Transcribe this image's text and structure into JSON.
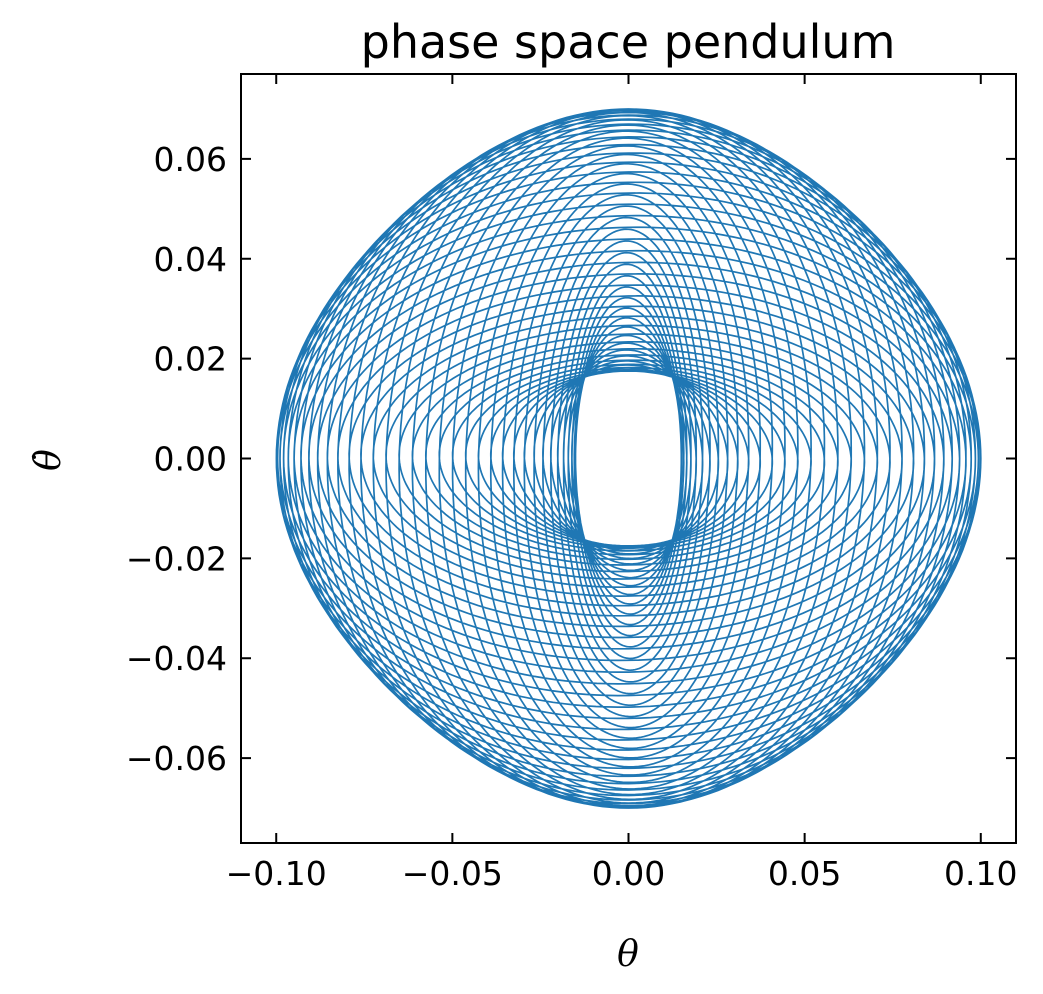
{
  "chart_data": {
    "type": "line",
    "title": "phase space pendulum",
    "xlabel": "θ",
    "ylabel": "θ̇",
    "xlim": [
      -0.11,
      0.11
    ],
    "ylim": [
      -0.077,
      0.077
    ],
    "xticks": [
      -0.1,
      -0.05,
      0.0,
      0.05,
      0.1
    ],
    "xtick_labels": [
      "−0.10",
      "−0.05",
      "0.00",
      "0.05",
      "0.10"
    ],
    "yticks": [
      0.06,
      0.04,
      0.02,
      0.0,
      -0.02,
      -0.04,
      -0.06
    ],
    "ytick_labels": [
      "0.06",
      "0.04",
      "0.02",
      "0.00",
      "−0.02",
      "−0.04",
      "−0.06"
    ],
    "grid": false,
    "series": [
      {
        "color": "#1f77b4",
        "amplitude_theta": [
          0.015,
          0.1
        ],
        "amplitude_theta_dot": [
          0.0175,
          0.07
        ],
        "x": [
          0.1,
          0.0866,
          0.05,
          0.0,
          -0.05,
          -0.0866,
          -0.1,
          -0.0866,
          -0.05,
          0.0,
          0.05,
          0.0866,
          0.1
        ],
        "y": [
          0.0,
          0.0175,
          0.0303,
          0.035,
          0.0303,
          0.0175,
          0.0,
          -0.0175,
          -0.0303,
          -0.035,
          -0.0303,
          -0.0175,
          0.0
        ]
      }
    ]
  }
}
